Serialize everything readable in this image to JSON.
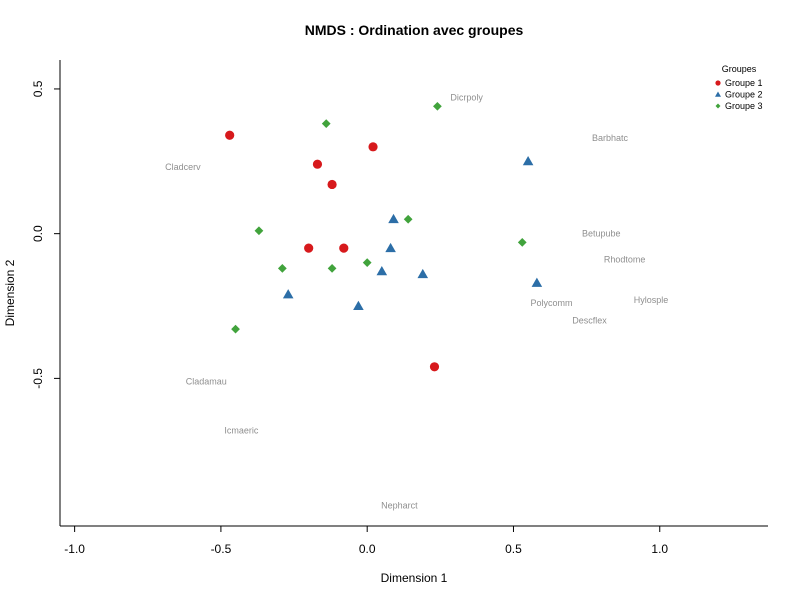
{
  "chart_data": {
    "type": "scatter",
    "title": "NMDS : Ordination avec groupes",
    "xlabel": "Dimension 1",
    "ylabel": "Dimension 2",
    "xlim": [
      -1.05,
      1.37
    ],
    "ylim": [
      -1.01,
      0.6
    ],
    "x_ticks": [
      -1.0,
      -0.5,
      0.0,
      0.5,
      1.0
    ],
    "x_tick_labels": [
      "-1.0",
      "-0.5",
      "0.0",
      "0.5",
      "1.0"
    ],
    "y_ticks": [
      -0.5,
      0.0,
      0.5
    ],
    "y_tick_labels": [
      "-0.5",
      "0.0",
      "0.5"
    ],
    "grid": false,
    "legend": {
      "title": "Groupes",
      "position": "top-right"
    },
    "series": [
      {
        "name": "Groupe 1",
        "marker": "circle",
        "color": "#d7191c",
        "points": [
          {
            "x": -0.47,
            "y": 0.34
          },
          {
            "x": 0.02,
            "y": 0.3
          },
          {
            "x": -0.17,
            "y": 0.24
          },
          {
            "x": -0.12,
            "y": 0.17
          },
          {
            "x": -0.2,
            "y": -0.05
          },
          {
            "x": -0.08,
            "y": -0.05
          },
          {
            "x": 0.23,
            "y": -0.46
          }
        ]
      },
      {
        "name": "Groupe 2",
        "marker": "triangle",
        "color": "#2c6ea7",
        "points": [
          {
            "x": 0.55,
            "y": 0.25
          },
          {
            "x": 0.09,
            "y": 0.05
          },
          {
            "x": 0.08,
            "y": -0.05
          },
          {
            "x": 0.05,
            "y": -0.13
          },
          {
            "x": 0.19,
            "y": -0.14
          },
          {
            "x": 0.58,
            "y": -0.17
          },
          {
            "x": -0.27,
            "y": -0.21
          },
          {
            "x": -0.03,
            "y": -0.25
          }
        ]
      },
      {
        "name": "Groupe 3",
        "marker": "diamond",
        "color": "#41a33c",
        "points": [
          {
            "x": 0.24,
            "y": 0.44
          },
          {
            "x": -0.14,
            "y": 0.38
          },
          {
            "x": 0.14,
            "y": 0.05
          },
          {
            "x": -0.37,
            "y": 0.01
          },
          {
            "x": 0.53,
            "y": -0.03
          },
          {
            "x": 0.0,
            "y": -0.1
          },
          {
            "x": -0.29,
            "y": -0.12
          },
          {
            "x": -0.12,
            "y": -0.12
          },
          {
            "x": -0.45,
            "y": -0.33
          }
        ]
      }
    ],
    "species_labels": [
      {
        "label": "Dicrpoly",
        "x": 0.34,
        "y": 0.47
      },
      {
        "label": "Barbhatc",
        "x": 0.83,
        "y": 0.33
      },
      {
        "label": "Cladcerv",
        "x": -0.63,
        "y": 0.23
      },
      {
        "label": "Betupube",
        "x": 0.8,
        "y": 0.0
      },
      {
        "label": "Rhodtome",
        "x": 0.88,
        "y": -0.09
      },
      {
        "label": "Hylosple",
        "x": 0.97,
        "y": -0.23
      },
      {
        "label": "Polycomm",
        "x": 0.63,
        "y": -0.24
      },
      {
        "label": "Descflex",
        "x": 0.76,
        "y": -0.3
      },
      {
        "label": "Cladamau",
        "x": -0.55,
        "y": -0.51
      },
      {
        "label": "Icmaeric",
        "x": -0.43,
        "y": -0.68
      },
      {
        "label": "Nepharct",
        "x": 0.11,
        "y": -0.94
      }
    ]
  },
  "colors": {
    "species_label": "#8f8f8f",
    "axis": "#000000"
  }
}
